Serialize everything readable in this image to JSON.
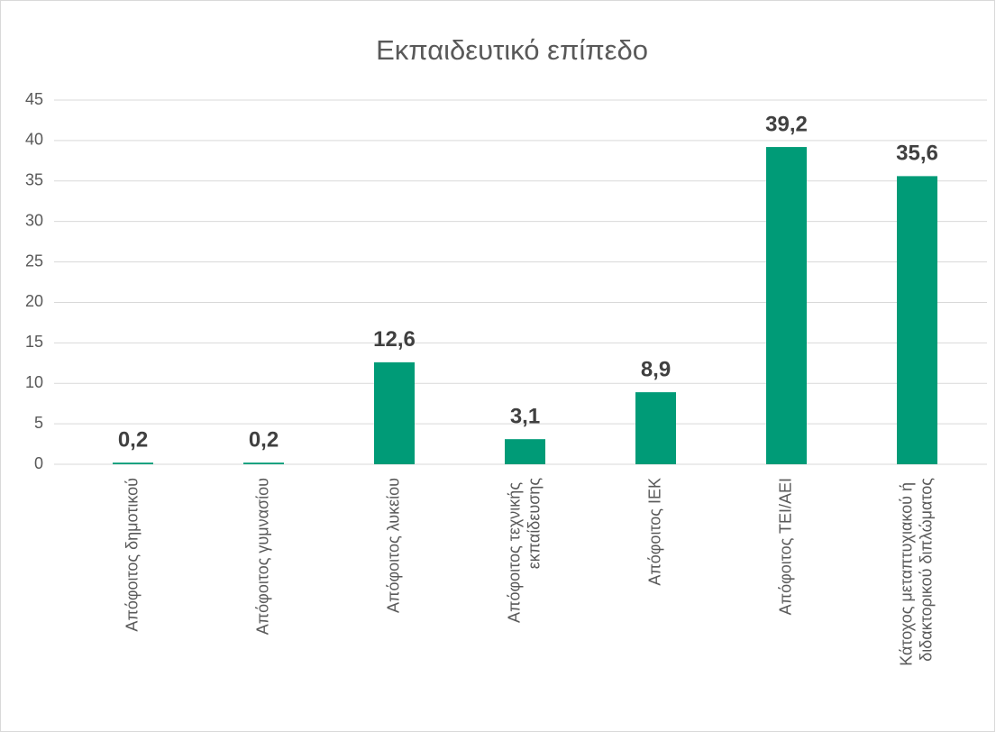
{
  "chart_data": {
    "type": "bar",
    "title": "Εκπαιδευτικό επίπεδο",
    "categories": [
      "Απόφοιτος δημοτικού",
      "Απόφοιτος γυμνασίου",
      "Απόφοιτος λυκείου",
      "Απόφοιτος τεχνικής εκπαίδευσης",
      "Απόφοιτος ΙΕΚ",
      "Απόφοιτος ΤΕΙ/ΑΕΙ",
      "Κάτοχος μεταπτυχιακού ή διδακτορικού διπλώματος"
    ],
    "values": [
      0.2,
      0.2,
      12.6,
      3.1,
      8.9,
      39.2,
      35.6
    ],
    "value_labels": [
      "0,2",
      "0,2",
      "12,6",
      "3,1",
      "8,9",
      "39,2",
      "35,6"
    ],
    "color": "#009b77",
    "ylim": [
      0,
      45
    ],
    "yticks": [
      0,
      5,
      10,
      15,
      20,
      25,
      30,
      35,
      40,
      45
    ],
    "grid": true
  }
}
